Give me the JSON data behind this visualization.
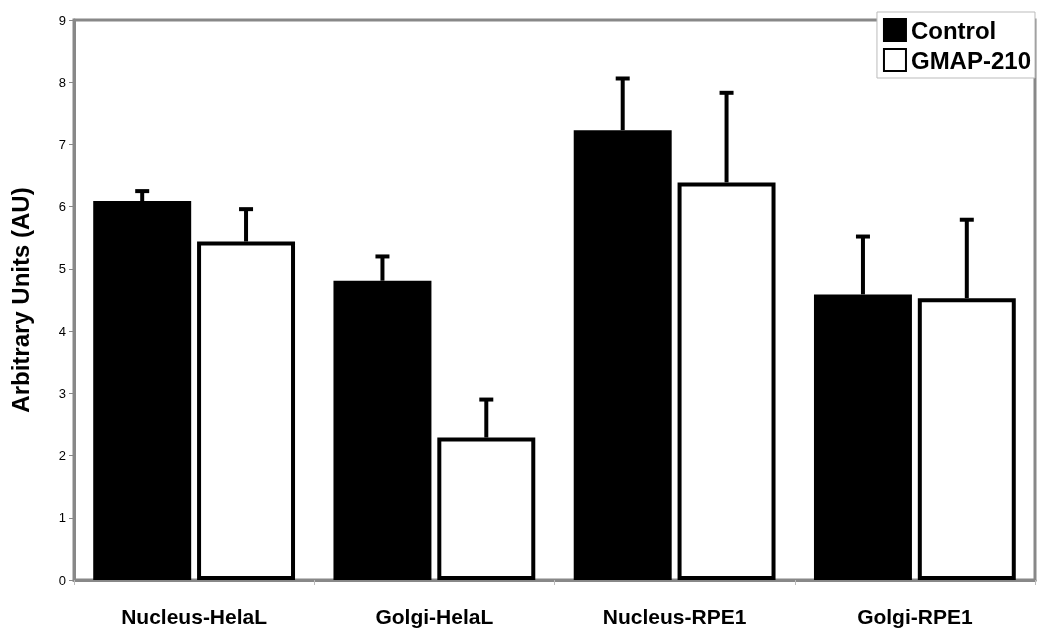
{
  "chart_data": {
    "type": "bar",
    "ylabel": "Arbitrary Units (AU)",
    "categories": [
      "Nucleus-HelaL",
      "Golgi-HelaL",
      "Nucleus-RPE1",
      "Golgi-RPE1"
    ],
    "series": [
      {
        "name": "Control",
        "color": "#000000",
        "values": [
          6.09,
          4.81,
          7.23,
          4.59
        ],
        "errors": [
          [
            6.09,
            6.25
          ],
          [
            4.81,
            5.2
          ],
          [
            7.23,
            8.06
          ],
          [
            4.59,
            5.52
          ]
        ]
      },
      {
        "name": "GMAP-210",
        "color": "#ffffff",
        "values": [
          5.44,
          2.29,
          6.39,
          4.53
        ],
        "errors": [
          [
            5.44,
            5.96
          ],
          [
            2.29,
            2.9
          ],
          [
            6.39,
            7.83
          ],
          [
            4.53,
            5.79
          ]
        ]
      }
    ],
    "ylim": [
      0,
      9
    ],
    "yticks": [
      0,
      1,
      2,
      3,
      4,
      5,
      6,
      7,
      8,
      9
    ],
    "grid": false,
    "legend": "top right"
  }
}
